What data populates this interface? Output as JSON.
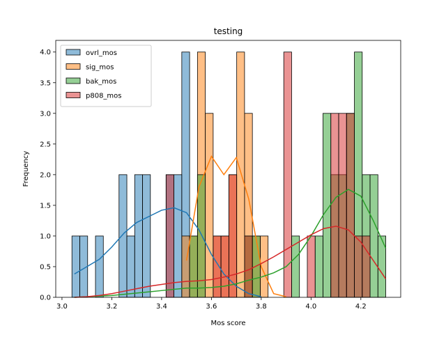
{
  "chart_data": {
    "type": "histogram",
    "title": "testing",
    "x_label": "Mos score",
    "y_label": "Frequency",
    "xlim": [
      2.975,
      4.36
    ],
    "ylim": [
      0,
      4.19
    ],
    "xticks": [
      {
        "value": 3.0,
        "label": "3.0"
      },
      {
        "value": 3.2,
        "label": "3.2"
      },
      {
        "value": 3.4,
        "label": "3.4"
      },
      {
        "value": 3.6,
        "label": "3.6"
      },
      {
        "value": 3.8,
        "label": "3.8"
      },
      {
        "value": 4.0,
        "label": "4.0"
      },
      {
        "value": 4.2,
        "label": "4.2"
      }
    ],
    "yticks": [
      {
        "value": 0,
        "label": "0.0"
      },
      {
        "value": 0.5,
        "label": "0.5"
      },
      {
        "value": 1,
        "label": "1.0"
      },
      {
        "value": 1.5,
        "label": "1.5"
      },
      {
        "value": 2,
        "label": "2.0"
      },
      {
        "value": 2.5,
        "label": "2.5"
      },
      {
        "value": 3,
        "label": "3.0"
      },
      {
        "value": 3.5,
        "label": "3.5"
      },
      {
        "value": 4,
        "label": "4.0"
      }
    ],
    "legend": "upper left",
    "bins": [
      3.04,
      3.0715,
      3.103,
      3.1345,
      3.166,
      3.1975,
      3.229,
      3.2605,
      3.292,
      3.3235,
      3.355,
      3.3865,
      3.418,
      3.4495,
      3.481,
      3.5125,
      3.544,
      3.5755,
      3.607,
      3.6385,
      3.67,
      3.7015,
      3.733,
      3.7645,
      3.796,
      3.8275,
      3.859,
      3.8905,
      3.922,
      3.9535,
      3.985,
      4.0165,
      4.048,
      4.0795,
      4.111,
      4.1425,
      4.174,
      4.2055,
      4.237,
      4.2685,
      4.3
    ],
    "kde_x": [
      3.05,
      3.1,
      3.15,
      3.2,
      3.25,
      3.3,
      3.35,
      3.4,
      3.45,
      3.5,
      3.55,
      3.6,
      3.65,
      3.7,
      3.75,
      3.8,
      3.85,
      3.9,
      3.95,
      4.0,
      4.05,
      4.1,
      4.15,
      4.2,
      4.25,
      4.3
    ],
    "series": [
      {
        "name": "ovrl_mos",
        "color": "#1f77b4",
        "values": [
          1,
          1,
          0,
          1,
          0,
          0,
          2,
          1,
          2,
          2,
          0,
          0,
          2,
          2,
          4,
          0,
          0,
          0,
          0,
          0,
          0,
          0,
          0,
          0,
          0,
          0,
          0,
          0,
          0,
          0,
          0,
          0,
          0,
          0,
          0,
          0,
          0,
          0,
          0,
          0
        ],
        "kde": [
          0.38,
          0.5,
          0.62,
          0.82,
          1.05,
          1.22,
          1.32,
          1.42,
          1.46,
          1.38,
          1.1,
          0.7,
          0.38,
          0.18,
          0.06,
          0.01,
          null,
          null,
          null,
          null,
          null,
          null,
          null,
          null,
          null,
          null
        ]
      },
      {
        "name": "sig_mos",
        "color": "#ff7f0e",
        "values": [
          0,
          0,
          0,
          0,
          0,
          0,
          0,
          0,
          0,
          0,
          0,
          0,
          0,
          0,
          1,
          1,
          4,
          3,
          1,
          1,
          2,
          4,
          3,
          1,
          1,
          0,
          0,
          0,
          0,
          0,
          0,
          0,
          0,
          0,
          0,
          0,
          0,
          0,
          0,
          0
        ],
        "kde": [
          null,
          null,
          null,
          null,
          null,
          null,
          null,
          null,
          null,
          0.6,
          1.8,
          2.3,
          2.0,
          2.28,
          1.6,
          0.5,
          0.06,
          0.01,
          null,
          null,
          null,
          null,
          null,
          null,
          null,
          null
        ]
      },
      {
        "name": "bak_mos",
        "color": "#2ca02c",
        "values": [
          0,
          0,
          0,
          0,
          0,
          0,
          0,
          0,
          0,
          0,
          0,
          0,
          0,
          0,
          0,
          1,
          2,
          0,
          0,
          0,
          0,
          0,
          1,
          1,
          0,
          0,
          0,
          0,
          1,
          0,
          0,
          1,
          3,
          2,
          2,
          3,
          4,
          2,
          2,
          1
        ],
        "kde": [
          0,
          0.01,
          0.02,
          0.03,
          0.05,
          0.07,
          0.09,
          0.11,
          0.13,
          0.15,
          0.15,
          0.16,
          0.18,
          0.22,
          0.28,
          0.33,
          0.4,
          0.5,
          0.7,
          1.0,
          1.35,
          1.63,
          1.76,
          1.65,
          1.25,
          0.8
        ]
      },
      {
        "name": "p808_mos",
        "color": "#d62728",
        "values": [
          0,
          0,
          0,
          0,
          0,
          0,
          0,
          0,
          0,
          0,
          0,
          0,
          2,
          0,
          0,
          0,
          0,
          0,
          1,
          1,
          2,
          0,
          1,
          0,
          0,
          0,
          0,
          4,
          0,
          0,
          1,
          0,
          0,
          3,
          3,
          3,
          1,
          1,
          0,
          0
        ],
        "kde": [
          0,
          0.01,
          0.03,
          0.06,
          0.1,
          0.14,
          0.18,
          0.21,
          0.24,
          0.26,
          0.27,
          0.29,
          0.33,
          0.38,
          0.45,
          0.55,
          0.66,
          0.78,
          0.9,
          1.02,
          1.12,
          1.16,
          1.1,
          0.9,
          0.6,
          0.3
        ]
      }
    ]
  }
}
